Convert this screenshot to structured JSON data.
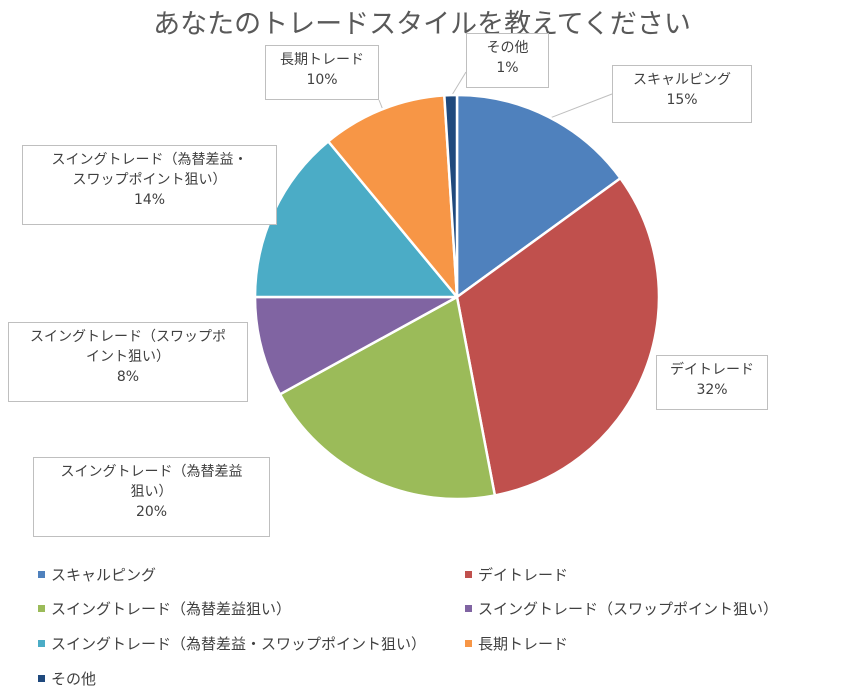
{
  "chart_data": {
    "type": "pie",
    "title": "あなたのトレードスタイルを教えてください",
    "start_angle_deg": 0,
    "direction": "clockwise",
    "slices": [
      {
        "label": "スキャルピング",
        "label_lines": [
          "スキャルピング"
        ],
        "value": 15,
        "pct_label": "15%",
        "color": "#4f81bd"
      },
      {
        "label": "デイトレード",
        "label_lines": [
          "デイトレード"
        ],
        "value": 32,
        "pct_label": "32%",
        "color": "#c0504d"
      },
      {
        "label": "スイングトレード（為替差益狙い）",
        "label_lines": [
          "スイングトレード（為替差益",
          "狙い）"
        ],
        "value": 20,
        "pct_label": "20%",
        "color": "#9bbb59"
      },
      {
        "label": "スイングトレード（スワップポイント狙い）",
        "label_lines": [
          "スイングトレード（スワップポ",
          "イント狙い）"
        ],
        "value": 8,
        "pct_label": "8%",
        "color": "#8064a2"
      },
      {
        "label": "スイングトレード（為替差益・スワップポイント狙い）",
        "label_lines": [
          "スイングトレード（為替差益・",
          "スワップポイント狙い）"
        ],
        "value": 14,
        "pct_label": "14%",
        "color": "#4bacc6"
      },
      {
        "label": "長期トレード",
        "label_lines": [
          "長期トレード"
        ],
        "value": 10,
        "pct_label": "10%",
        "color": "#f79646"
      },
      {
        "label": "その他",
        "label_lines": [
          "その他"
        ],
        "value": 1,
        "pct_label": "1%",
        "color": "#1f497d"
      }
    ],
    "legend_position": "bottom"
  }
}
